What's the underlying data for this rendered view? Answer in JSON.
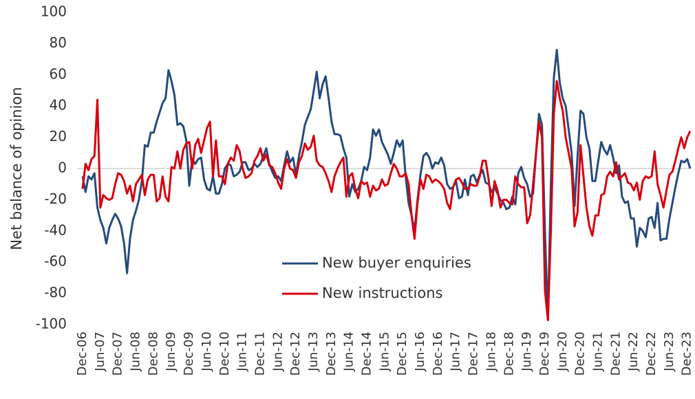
{
  "chart_data": {
    "type": "line",
    "ylabel": "Net balance of opinion",
    "categories": [
      "Dec-06",
      null,
      null,
      null,
      null,
      null,
      "Jun-07",
      null,
      null,
      null,
      null,
      null,
      "Dec-07",
      null,
      null,
      null,
      null,
      null,
      "Jun-08",
      null,
      null,
      null,
      null,
      null,
      "Dec-08",
      null,
      null,
      null,
      null,
      null,
      "Jun-09",
      null,
      null,
      null,
      null,
      null,
      "Dec-09",
      null,
      null,
      null,
      null,
      null,
      "Jun-10",
      null,
      null,
      null,
      null,
      null,
      "Dec-10",
      null,
      null,
      null,
      null,
      null,
      "Jun-11",
      null,
      null,
      null,
      null,
      null,
      "Dec-11",
      null,
      null,
      null,
      null,
      null,
      "Jun-12",
      null,
      null,
      null,
      null,
      null,
      "Dec-12",
      null,
      null,
      null,
      null,
      null,
      "Jun-13",
      null,
      null,
      null,
      null,
      null,
      "Dec-13",
      null,
      null,
      null,
      null,
      null,
      "Jun-14",
      null,
      null,
      null,
      null,
      null,
      "Dec-14",
      null,
      null,
      null,
      null,
      null,
      "Jun-15",
      null,
      null,
      null,
      null,
      null,
      "Dec-15",
      null,
      null,
      null,
      null,
      null,
      "Jun-16",
      null,
      null,
      null,
      null,
      null,
      "Dec-16",
      null,
      null,
      null,
      null,
      null,
      "Jun-17",
      null,
      null,
      null,
      null,
      null,
      "Dec-17",
      null,
      null,
      null,
      null,
      null,
      "Jun-18",
      null,
      null,
      null,
      null,
      null,
      "Dec-18",
      null,
      null,
      null,
      null,
      null,
      "Jun-19",
      null,
      null,
      null,
      null,
      null,
      "Dec-19",
      null,
      null,
      null,
      null,
      null,
      "Jun-20",
      null,
      null,
      null,
      null,
      null,
      "Dec-20",
      null,
      null,
      null,
      null,
      null,
      "Jun-21",
      null,
      null,
      null,
      null,
      null,
      "Dec-21",
      null,
      null,
      null,
      null,
      null,
      "Jun-22",
      null,
      null,
      null,
      null,
      null,
      "Dec-22",
      null,
      null,
      null,
      null,
      null,
      "Jun-23",
      null,
      null,
      null,
      null,
      null,
      "Dec-23",
      null
    ],
    "series": [
      {
        "name": "New buyer enquiries",
        "color": "#254b7c",
        "values": [
          -5,
          -15,
          -5,
          -7,
          -3,
          -25,
          -33,
          -38,
          -48,
          -38,
          -33,
          -29,
          -32,
          -37,
          -48,
          -67,
          -45,
          -33,
          -27,
          -20,
          -8,
          15,
          14,
          23,
          23,
          30,
          36,
          42,
          45,
          63,
          56,
          47,
          28,
          29,
          27,
          18,
          -11,
          6,
          3,
          6,
          7,
          -7,
          -13,
          -14,
          -5,
          -16,
          -16,
          -10,
          0,
          3,
          2,
          -5,
          -4,
          -2,
          4,
          4,
          -1,
          0,
          3,
          1,
          3,
          8,
          13,
          3,
          -2,
          -6,
          -5,
          -8,
          2,
          11,
          4,
          7,
          -4,
          8,
          17,
          28,
          33,
          38,
          50,
          62,
          45,
          54,
          59,
          45,
          30,
          22,
          22,
          21,
          13,
          7,
          -18,
          -10,
          -15,
          -13,
          -8,
          1,
          -1,
          7,
          25,
          21,
          25,
          17,
          13,
          9,
          3,
          10,
          18,
          14,
          18,
          -5,
          -22,
          -30,
          -40,
          -20,
          -4,
          8,
          10,
          7,
          0,
          4,
          3,
          7,
          2,
          -10,
          -13,
          -12,
          -8,
          -19,
          -18,
          -7,
          -17,
          -5,
          -4,
          -9,
          -4,
          -1,
          -9,
          -10,
          -15,
          -12,
          -16,
          -20,
          -22,
          -26,
          -25,
          -18,
          -23,
          -3,
          1,
          -6,
          -10,
          -18,
          -16,
          10,
          35,
          28,
          -40,
          -97,
          -10,
          58,
          76,
          55,
          45,
          40,
          25,
          10,
          -24,
          8,
          37,
          35,
          20,
          13,
          -8,
          -8,
          5,
          17,
          12,
          9,
          15,
          7,
          -3,
          2,
          -18,
          -22,
          -21,
          -32,
          -32,
          -50,
          -38,
          -40,
          -44,
          -32,
          -31,
          -38,
          -22,
          -46,
          -45,
          -45,
          -32,
          -22,
          -12,
          -3,
          5,
          4,
          6,
          0
        ]
      },
      {
        "name": "New instructions",
        "color": "#d7000f",
        "values": [
          -13,
          3,
          -1,
          6,
          8,
          44,
          -25,
          -17,
          -19,
          -20,
          -19,
          -10,
          -3,
          -4,
          -8,
          -16,
          -11,
          -21,
          -10,
          -7,
          -4,
          -17,
          -7,
          -4,
          -4,
          -21,
          -19,
          -5,
          -18,
          -21,
          1,
          0,
          11,
          0,
          12,
          16,
          17,
          0,
          15,
          19,
          10,
          18,
          26,
          30,
          -5,
          18,
          -5,
          -5,
          -10,
          3,
          7,
          5,
          15,
          11,
          0,
          -6,
          -5,
          -3,
          5,
          8,
          13,
          5,
          9,
          2,
          1,
          -3,
          -9,
          -13,
          0,
          6,
          0,
          -1,
          -6,
          4,
          8,
          16,
          12,
          14,
          21,
          5,
          2,
          1,
          -3,
          -8,
          -15,
          -5,
          0,
          4,
          7,
          -18,
          -5,
          -3,
          -13,
          -19,
          -8,
          -10,
          -9,
          -18,
          -11,
          -14,
          -13,
          -7,
          -11,
          -10,
          -3,
          3,
          0,
          -5,
          -5,
          -3,
          -10,
          -30,
          -45,
          -22,
          -7,
          -13,
          -4,
          -5,
          -9,
          -7,
          -8,
          -10,
          -13,
          -22,
          -26,
          -12,
          -7,
          -6,
          -9,
          -13,
          -13,
          -10,
          -11,
          -11,
          -5,
          5,
          5,
          -7,
          -24,
          -8,
          -14,
          -25,
          -20,
          -20,
          -22,
          -23,
          -5,
          -10,
          -12,
          -12,
          -35,
          -30,
          -10,
          10,
          30,
          20,
          -78,
          -97,
          -40,
          35,
          56,
          45,
          37,
          20,
          10,
          0,
          -37,
          -28,
          15,
          -5,
          -25,
          -37,
          -43,
          -30,
          -30,
          -17,
          -16,
          -5,
          -2,
          -5,
          4,
          -7,
          -5,
          -3,
          -9,
          -10,
          -14,
          -9,
          -20,
          -8,
          -5,
          -6,
          -5,
          11,
          -10,
          -17,
          -25,
          -14,
          -4,
          -2,
          5,
          13,
          20,
          13,
          20,
          24
        ]
      }
    ],
    "ylim": [
      -100,
      100
    ],
    "yticks": [
      -100,
      -80,
      -60,
      -40,
      -20,
      0,
      20,
      40,
      60,
      80,
      100
    ]
  }
}
